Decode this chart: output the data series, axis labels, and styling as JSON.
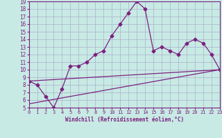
{
  "xlabel": "Windchill (Refroidissement éolien,°C)",
  "xlim": [
    0,
    23
  ],
  "ylim": [
    5,
    19
  ],
  "xticks": [
    0,
    1,
    2,
    3,
    4,
    5,
    6,
    7,
    8,
    9,
    10,
    11,
    12,
    13,
    14,
    15,
    16,
    17,
    18,
    19,
    20,
    21,
    22,
    23
  ],
  "yticks": [
    5,
    6,
    7,
    8,
    9,
    10,
    11,
    12,
    13,
    14,
    15,
    16,
    17,
    18,
    19
  ],
  "bg_color": "#c8eae4",
  "line_color": "#7b2080",
  "grid_color": "#aab0cc",
  "line1_x": [
    0,
    1,
    2,
    3,
    4,
    5,
    6,
    7,
    8,
    9,
    10,
    11,
    12,
    13,
    14,
    15,
    16,
    17,
    18,
    19,
    20,
    21,
    22,
    23
  ],
  "line1_y": [
    8.5,
    8.0,
    6.5,
    5.0,
    7.5,
    10.5,
    10.5,
    11.0,
    12.0,
    12.5,
    14.5,
    16.0,
    17.5,
    19.0,
    18.0,
    12.5,
    13.0,
    12.5,
    12.0,
    13.5,
    14.0,
    13.5,
    12.0,
    10.0
  ],
  "line2_x": [
    0,
    23
  ],
  "line2_y": [
    5.5,
    10.0
  ],
  "line3_x": [
    0,
    23
  ],
  "line3_y": [
    8.5,
    10.0
  ],
  "marker": "D",
  "markersize": 2.5,
  "linewidth": 0.9
}
